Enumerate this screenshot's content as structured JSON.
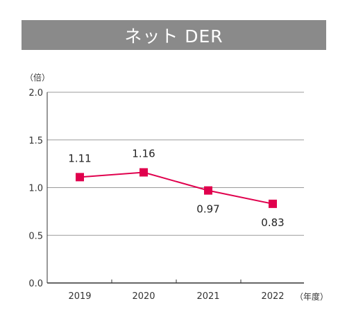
{
  "header": {
    "title": "ネット DER"
  },
  "colors": {
    "banner_bg": "#8a8a8a",
    "series": "#e0004d",
    "grid": "#9a9a9a",
    "axis": "#333333"
  },
  "chart_data": {
    "type": "line",
    "title": "ネット DER",
    "y_unit_label": "（倍）",
    "x_unit_label": "（年度）",
    "ylim": [
      0,
      2.0
    ],
    "y_ticks": [
      "0.0",
      "0.5",
      "1.0",
      "1.5",
      "2.0"
    ],
    "y_tick_values": [
      0,
      0.5,
      1.0,
      1.5,
      2.0
    ],
    "categories": [
      "2019",
      "2020",
      "2021",
      "2022"
    ],
    "series": [
      {
        "values": [
          1.11,
          1.16,
          0.97,
          0.83
        ],
        "value_labels": [
          "1.11",
          "1.16",
          "0.97",
          "0.83"
        ],
        "label_positions": [
          "above",
          "above",
          "below",
          "below"
        ]
      }
    ],
    "grid": true
  }
}
